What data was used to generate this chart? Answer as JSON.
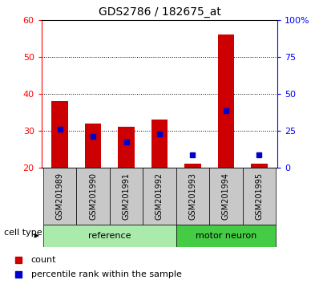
{
  "title": "GDS2786 / 182675_at",
  "samples": [
    "GSM201989",
    "GSM201990",
    "GSM201991",
    "GSM201992",
    "GSM201993",
    "GSM201994",
    "GSM201995"
  ],
  "red_values": [
    38.0,
    32.0,
    31.0,
    33.0,
    21.0,
    56.0,
    21.0
  ],
  "blue_values": [
    30.5,
    28.5,
    27.0,
    29.0,
    23.5,
    35.5,
    23.5
  ],
  "y_min": 20,
  "y_max": 60,
  "y_ticks": [
    20,
    30,
    40,
    50,
    60
  ],
  "y2_tick_positions": [
    20,
    30,
    40,
    50,
    60
  ],
  "y2_tick_labels": [
    "0",
    "25",
    "50",
    "75",
    "100%"
  ],
  "red_color": "#CC0000",
  "blue_color": "#0000CC",
  "bar_width": 0.5,
  "bg_color_xlabels": "#C8C8C8",
  "ref_color": "#AAEAAA",
  "motor_color": "#44CC44",
  "legend_count": "count",
  "legend_percentile": "percentile rank within the sample",
  "title_fontsize": 10,
  "tick_fontsize": 8,
  "label_fontsize": 8,
  "sample_fontsize": 7
}
